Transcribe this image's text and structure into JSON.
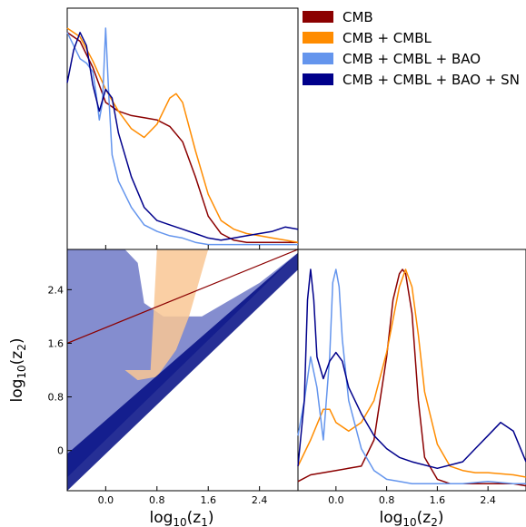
{
  "figure": {
    "x_axis_label_main": "log",
    "x_axis_label_sub": "10",
    "x_axis_label_var_1": "(z",
    "x_axis_label_var_1_sub": "1",
    "x_axis_label_var_2": "(z",
    "x_axis_label_var_2_sub": "2",
    "y_axis_label_main": "log",
    "y_axis_label_sub": "10",
    "y_axis_label_var": "(z",
    "y_axis_label_var_sub": "2",
    "close_paren": ")"
  },
  "legend": {
    "placement": "top-right",
    "entries": [
      {
        "label": "CMB",
        "color": "#8b0000"
      },
      {
        "label": "CMB + CMBL",
        "color": "#ff8c00"
      },
      {
        "label": "CMB + CMBL + BAO",
        "color": "#6495ed"
      },
      {
        "label": "CMB + CMBL + BAO + SN",
        "color": "#00008b"
      }
    ]
  },
  "chart_data": [
    {
      "type": "line",
      "panel": "marginal-z1",
      "xlim": [
        -0.6,
        3.0
      ],
      "x_ticks": [
        "0.0",
        "0.8",
        "1.6",
        "2.4"
      ],
      "x_tick_values": [
        0.0,
        0.8,
        1.6,
        2.4
      ],
      "y_ticks": [],
      "series": [
        {
          "name": "CMB",
          "color": "#8b0000",
          "x": [
            -0.6,
            -0.4,
            -0.2,
            0.0,
            0.2,
            0.4,
            0.6,
            0.8,
            1.0,
            1.2,
            1.4,
            1.6,
            1.8,
            2.0,
            2.2,
            2.4,
            2.6,
            2.8,
            3.0
          ],
          "y": [
            0.98,
            0.94,
            0.82,
            0.66,
            0.62,
            0.6,
            0.59,
            0.58,
            0.55,
            0.48,
            0.32,
            0.14,
            0.06,
            0.03,
            0.02,
            0.02,
            0.02,
            0.02,
            0.02
          ]
        },
        {
          "name": "CMB + CMBL",
          "color": "#ff8c00",
          "x": [
            -0.6,
            -0.4,
            -0.2,
            0.0,
            0.2,
            0.4,
            0.6,
            0.8,
            1.0,
            1.1,
            1.2,
            1.4,
            1.6,
            1.8,
            2.0,
            2.2,
            2.4,
            2.6,
            2.8,
            3.0
          ],
          "y": [
            1.0,
            0.96,
            0.85,
            0.72,
            0.62,
            0.54,
            0.5,
            0.56,
            0.68,
            0.7,
            0.66,
            0.44,
            0.24,
            0.12,
            0.08,
            0.06,
            0.05,
            0.04,
            0.03,
            0.02
          ]
        },
        {
          "name": "CMB + CMBL + BAO",
          "color": "#6495ed",
          "x": [
            -0.6,
            -0.5,
            -0.4,
            -0.3,
            -0.2,
            -0.15,
            -0.1,
            -0.05,
            0.0,
            0.05,
            0.1,
            0.2,
            0.4,
            0.6,
            0.8,
            1.0,
            1.2,
            1.4,
            1.6,
            1.8,
            2.0,
            2.2,
            2.4,
            2.6,
            2.8,
            3.0
          ],
          "y": [
            0.98,
            0.92,
            0.86,
            0.84,
            0.8,
            0.7,
            0.58,
            0.66,
            1.0,
            0.68,
            0.42,
            0.3,
            0.18,
            0.1,
            0.07,
            0.05,
            0.04,
            0.02,
            0.01,
            0.01,
            0.01,
            0.01,
            0.01,
            0.01,
            0.01,
            0.01
          ]
        },
        {
          "name": "CMB + CMBL + BAO + SN",
          "color": "#00008b",
          "x": [
            -0.6,
            -0.5,
            -0.4,
            -0.3,
            -0.2,
            -0.1,
            0.0,
            0.1,
            0.2,
            0.4,
            0.6,
            0.8,
            1.0,
            1.2,
            1.4,
            1.6,
            1.8,
            2.0,
            2.2,
            2.4,
            2.6,
            2.8,
            3.0
          ],
          "y": [
            0.75,
            0.9,
            0.98,
            0.92,
            0.74,
            0.62,
            0.72,
            0.68,
            0.52,
            0.32,
            0.18,
            0.12,
            0.1,
            0.08,
            0.06,
            0.04,
            0.03,
            0.04,
            0.05,
            0.06,
            0.07,
            0.09,
            0.08
          ]
        }
      ]
    },
    {
      "type": "line",
      "panel": "marginal-z2",
      "xlim": [
        -0.6,
        3.0
      ],
      "x_ticks": [
        "0.0",
        "0.8",
        "1.6",
        "2.4"
      ],
      "x_tick_values": [
        0.0,
        0.8,
        1.6,
        2.4
      ],
      "y_ticks": [],
      "series": [
        {
          "name": "CMB",
          "color": "#8b0000",
          "x": [
            -0.6,
            -0.4,
            -0.2,
            0.0,
            0.2,
            0.4,
            0.6,
            0.8,
            0.9,
            1.0,
            1.05,
            1.1,
            1.2,
            1.3,
            1.4,
            1.6,
            1.8,
            2.0,
            2.4,
            2.8,
            3.0
          ],
          "y": [
            0.03,
            0.06,
            0.07,
            0.08,
            0.09,
            0.1,
            0.22,
            0.6,
            0.86,
            0.98,
            1.0,
            0.98,
            0.8,
            0.4,
            0.14,
            0.04,
            0.02,
            0.02,
            0.02,
            0.02,
            0.01
          ]
        },
        {
          "name": "CMB + CMBL",
          "color": "#ff8c00",
          "x": [
            -0.6,
            -0.4,
            -0.2,
            -0.1,
            0.0,
            0.2,
            0.4,
            0.6,
            0.8,
            1.0,
            1.1,
            1.2,
            1.3,
            1.4,
            1.6,
            1.8,
            2.0,
            2.2,
            2.4,
            2.8,
            3.0
          ],
          "y": [
            0.1,
            0.22,
            0.36,
            0.36,
            0.3,
            0.26,
            0.3,
            0.4,
            0.62,
            0.92,
            1.0,
            0.92,
            0.7,
            0.44,
            0.2,
            0.1,
            0.08,
            0.07,
            0.07,
            0.06,
            0.05
          ]
        },
        {
          "name": "CMB + CMBL + BAO",
          "color": "#6495ed",
          "x": [
            -0.6,
            -0.5,
            -0.4,
            -0.3,
            -0.2,
            -0.1,
            -0.05,
            0.0,
            0.05,
            0.1,
            0.2,
            0.4,
            0.6,
            0.8,
            1.0,
            1.2,
            1.6,
            2.0,
            2.4,
            2.8,
            3.0
          ],
          "y": [
            0.24,
            0.4,
            0.6,
            0.46,
            0.22,
            0.6,
            0.94,
            1.0,
            0.92,
            0.68,
            0.4,
            0.18,
            0.08,
            0.04,
            0.03,
            0.02,
            0.02,
            0.02,
            0.03,
            0.02,
            0.02
          ]
        },
        {
          "name": "CMB + CMBL + BAO + SN",
          "color": "#00008b",
          "x": [
            -0.6,
            -0.5,
            -0.45,
            -0.4,
            -0.35,
            -0.3,
            -0.2,
            -0.1,
            0.0,
            0.1,
            0.2,
            0.4,
            0.6,
            0.8,
            1.0,
            1.2,
            1.6,
            2.0,
            2.2,
            2.4,
            2.6,
            2.8,
            3.0
          ],
          "y": [
            0.1,
            0.4,
            0.86,
            1.0,
            0.86,
            0.6,
            0.5,
            0.58,
            0.62,
            0.58,
            0.46,
            0.34,
            0.24,
            0.18,
            0.14,
            0.12,
            0.09,
            0.12,
            0.18,
            0.24,
            0.3,
            0.26,
            0.12
          ]
        }
      ]
    },
    {
      "type": "area",
      "panel": "joint-z1-z2",
      "xlim": [
        -0.6,
        3.0
      ],
      "ylim": [
        -0.6,
        3.0
      ],
      "x_ticks": [
        "0.0",
        "0.8",
        "1.6",
        "2.4"
      ],
      "x_tick_values": [
        0.0,
        0.8,
        1.6,
        2.4
      ],
      "y_ticks": [
        "0",
        "0.8",
        "1.6",
        "2.4"
      ],
      "y_tick_values": [
        0.0,
        0.8,
        1.6,
        2.4
      ],
      "regions": [
        {
          "name": "CMB + CMBL + BAO",
          "color": "#6f79c7",
          "x": [
            -0.6,
            -0.6,
            0.3,
            0.5,
            0.6,
            0.9,
            1.5,
            2.4,
            3.0,
            3.0
          ],
          "y": [
            -0.4,
            3.0,
            3.0,
            2.8,
            2.2,
            2.0,
            2.0,
            2.5,
            2.95,
            2.95
          ]
        },
        {
          "name": "CMB + CMBL",
          "color": "#f9c794",
          "x": [
            0.3,
            0.7,
            0.8,
            1.6,
            1.3,
            1.1,
            0.8,
            0.5
          ],
          "y": [
            1.2,
            1.2,
            3.0,
            3.0,
            2.0,
            1.5,
            1.1,
            1.05
          ]
        },
        {
          "name": "CMB + CMBL + BAO + SN",
          "color": "#000a82",
          "x": [
            -0.6,
            -0.6,
            3.0,
            3.0
          ],
          "y": [
            -0.6,
            -0.05,
            2.95,
            2.7
          ]
        },
        {
          "name": "CMB",
          "color": "#8b0000",
          "x": [
            -0.6,
            3.0
          ],
          "y": [
            1.6,
            3.0
          ]
        }
      ]
    }
  ]
}
